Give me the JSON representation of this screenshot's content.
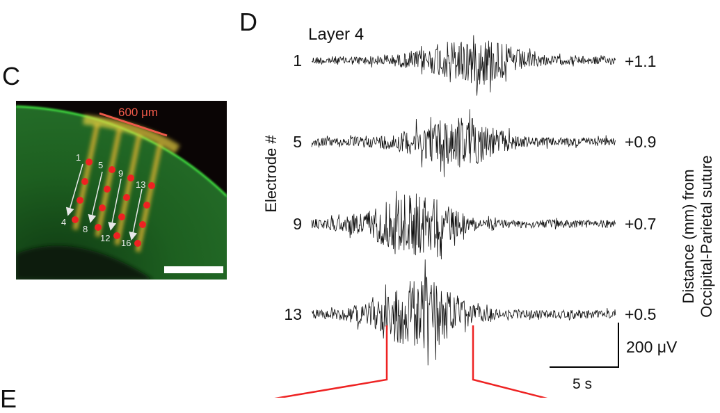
{
  "panel_c": {
    "label": "C",
    "scale_text": "600 μm",
    "electrode_labels": [
      "1",
      "5",
      "9",
      "13",
      "4",
      "8",
      "12",
      "16"
    ],
    "colors": {
      "tissue": "#1e6a1e",
      "edge": "#3fe03f",
      "dot": "#ee2222",
      "scale_line": "#f05a4a",
      "arrow": "#e8e8e8"
    }
  },
  "panel_d": {
    "label": "D",
    "title": "Layer 4",
    "y_label": "Electrode #",
    "right_label_line1": "Distance (mm) from",
    "right_label_line2": "Occipital-Parietal suture",
    "traces": [
      {
        "electrode": "1",
        "distance": "+1.1"
      },
      {
        "electrode": "5",
        "distance": "+0.9"
      },
      {
        "electrode": "9",
        "distance": "+0.7"
      },
      {
        "electrode": "13",
        "distance": "+0.5"
      }
    ],
    "scale_v": "200 μV",
    "scale_t": "5 s",
    "highlight_color": "#ee2222"
  },
  "panel_e": {
    "label": "E"
  }
}
